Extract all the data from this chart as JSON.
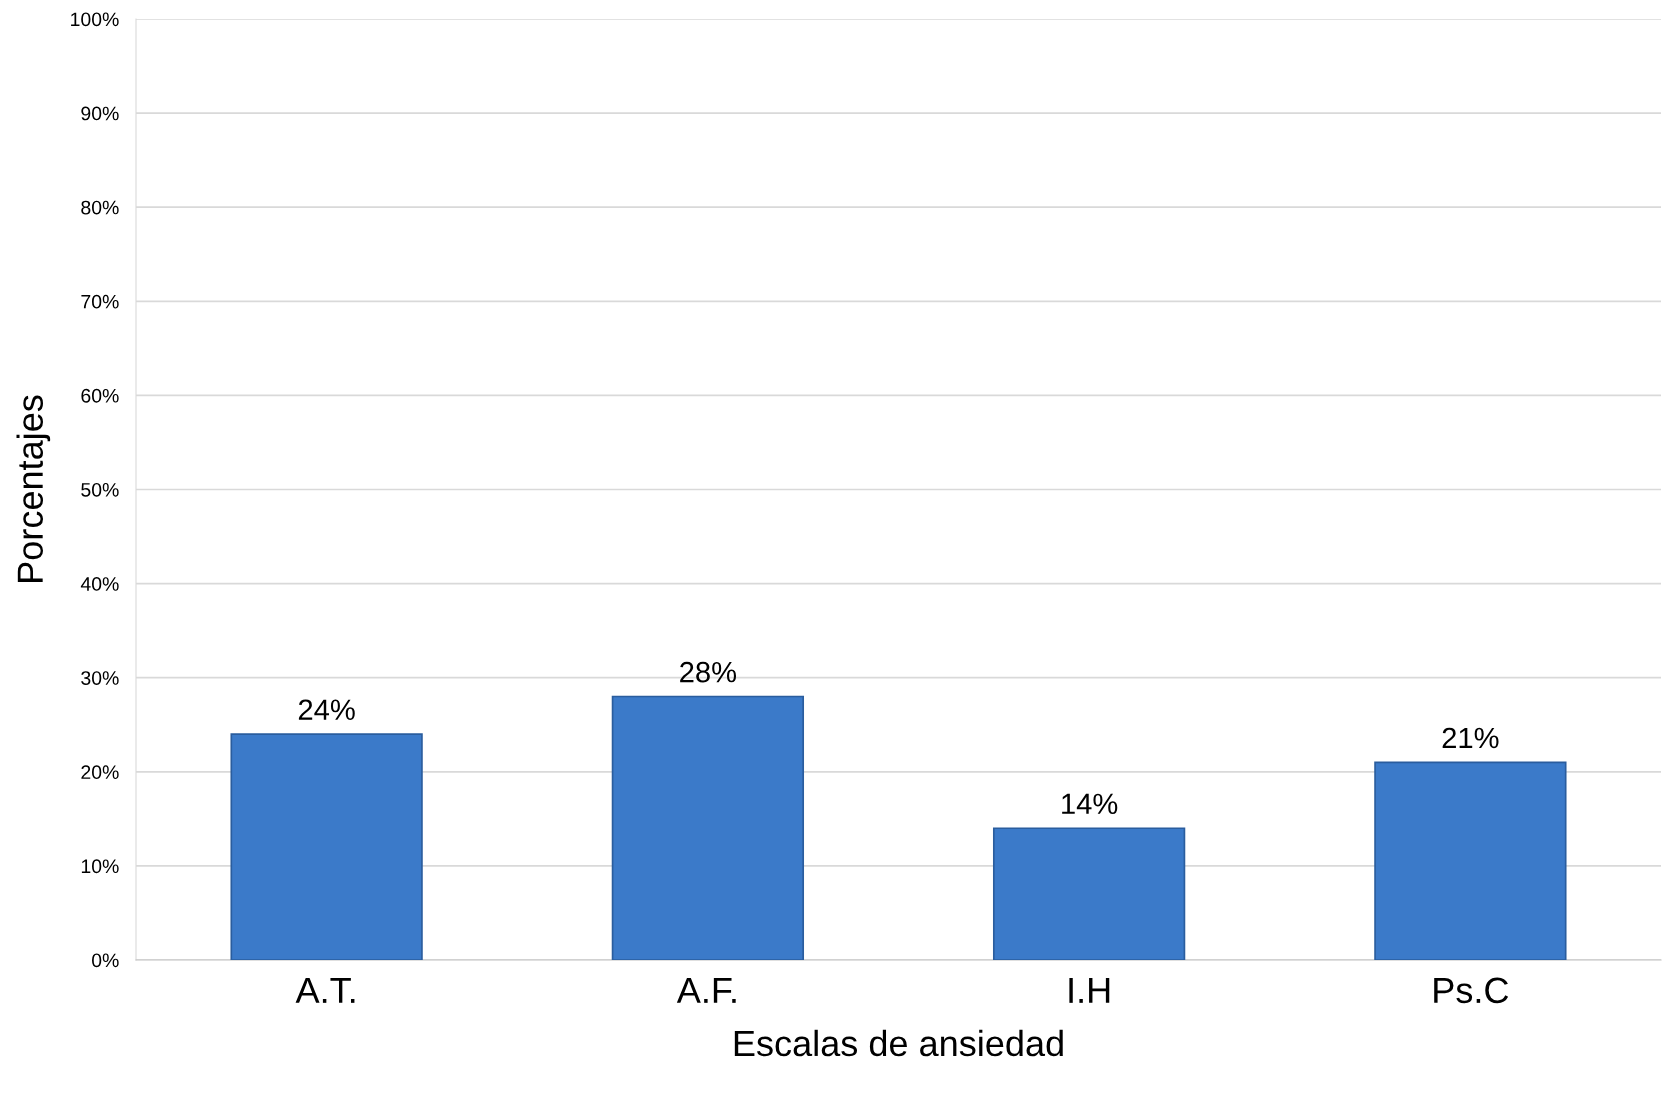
{
  "chart_data": {
    "type": "bar",
    "xlabel": "Escalas de ansiedad",
    "ylabel": "Porcentajes",
    "categories": [
      "A.T.",
      "A.F.",
      "I.H",
      "Ps.C"
    ],
    "values": [
      24,
      28,
      14,
      21
    ],
    "color": "#3b7ac9",
    "value_labels": [
      "24%",
      "28%",
      "14%",
      "21%"
    ],
    "ylim": [
      0,
      100
    ],
    "yticks": [
      {
        "value": 0,
        "label": "0%"
      },
      {
        "value": 10,
        "label": "10%"
      },
      {
        "value": 20,
        "label": "20%"
      },
      {
        "value": 30,
        "label": "30%"
      },
      {
        "value": 40,
        "label": "40%"
      },
      {
        "value": 50,
        "label": "50%"
      },
      {
        "value": 60,
        "label": "60%"
      },
      {
        "value": 70,
        "label": "70%"
      },
      {
        "value": 80,
        "label": "80%"
      },
      {
        "value": 90,
        "label": "90%"
      },
      {
        "value": 100,
        "label": "100%"
      }
    ],
    "grid": "y",
    "legend": false
  }
}
